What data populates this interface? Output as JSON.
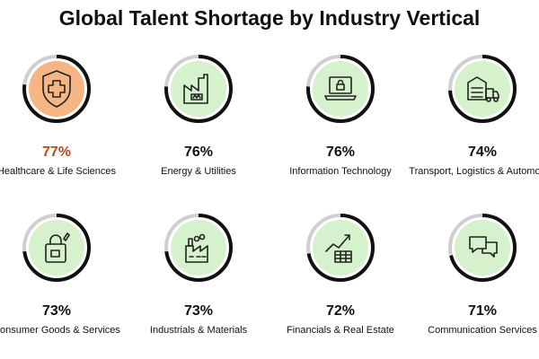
{
  "chart_data": {
    "type": "table",
    "title": "Global Talent Shortage by Industry Vertical",
    "items": [
      {
        "label": "Healthcare & Life Sciences",
        "value": 77,
        "display": "77%",
        "icon": "shield-cross-icon",
        "highlight": true
      },
      {
        "label": "Energy & Utilities",
        "value": 76,
        "display": "76%",
        "icon": "factory-icon",
        "highlight": false
      },
      {
        "label": "Information Technology",
        "value": 76,
        "display": "76%",
        "icon": "laptop-lock-icon",
        "highlight": false
      },
      {
        "label": "Transport, Logistics & Automotive",
        "value": 74,
        "display": "74%",
        "icon": "warehouse-truck-icon",
        "highlight": false
      },
      {
        "label": "Consumer Goods & Services",
        "value": 73,
        "display": "73%",
        "icon": "shopping-bag-icon",
        "highlight": false
      },
      {
        "label": "Industrials & Materials",
        "value": 73,
        "display": "73%",
        "icon": "industrial-plant-icon",
        "highlight": false
      },
      {
        "label": "Financials & Real Estate",
        "value": 72,
        "display": "72%",
        "icon": "growth-chart-icon",
        "highlight": false
      },
      {
        "label": "Communication Services",
        "value": 71,
        "display": "71%",
        "icon": "chat-bubbles-icon",
        "highlight": false
      }
    ]
  },
  "colors": {
    "highlight_fill": "#f6b584",
    "highlight_text": "#c0461b",
    "default_fill": "#d6f2cc",
    "ring_track": "#cfcfcf",
    "ring_arc": "#111111",
    "icon_stroke": "#222222"
  }
}
